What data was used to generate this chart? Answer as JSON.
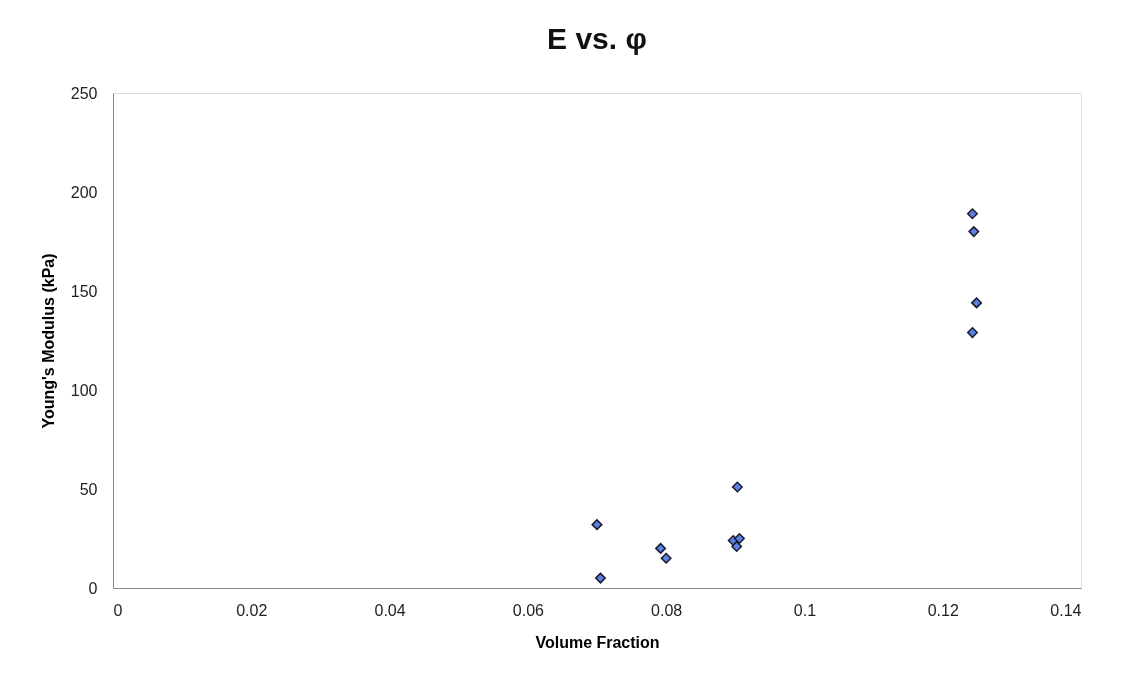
{
  "chart_data": {
    "type": "scatter",
    "title": "E vs. φ",
    "xlabel": "Volume Fraction",
    "ylabel": "Young's Modulus (kPa)",
    "x": [
      0.07,
      0.0705,
      0.0792,
      0.08,
      0.0903,
      0.0897,
      0.0906,
      0.0902,
      0.1243,
      0.1245,
      0.1249,
      0.1243
    ],
    "series": [
      {
        "color": "#5b82e0",
        "values": [
          32,
          5,
          20,
          15,
          51,
          24,
          25,
          21,
          189,
          180,
          144,
          129
        ]
      }
    ],
    "xlim": [
      0,
      0.14
    ],
    "xticks": [
      0,
      0.02,
      0.04,
      0.06,
      0.08,
      {
        "value": 0.1,
        "label": "0.1"
      },
      0.12,
      0.14
    ],
    "ylim": [
      0,
      250
    ],
    "yticks": [
      0,
      50,
      100,
      150,
      200,
      250
    ],
    "marker": "diamond",
    "grid": false
  }
}
